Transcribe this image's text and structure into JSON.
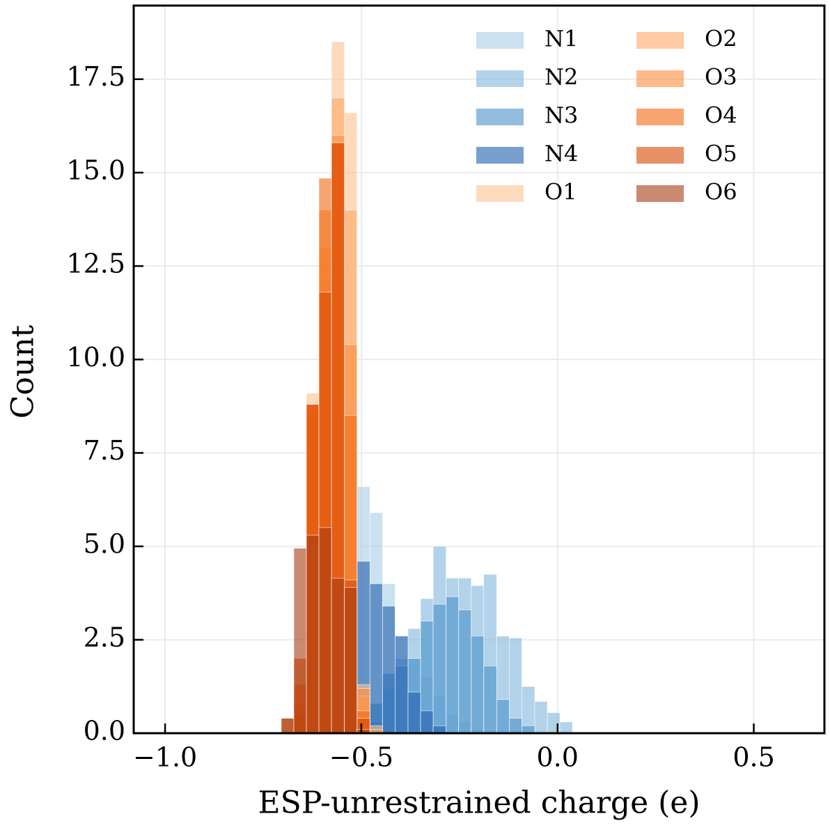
{
  "chart_data": {
    "type": "histogram",
    "xlabel": "ESP-unrestrained charge (e)",
    "ylabel": "Count",
    "xlim": [
      -1.08,
      0.68
    ],
    "ylim": [
      0,
      19.47
    ],
    "xticks": [
      {
        "value": -1.0,
        "label": "−1.0"
      },
      {
        "value": -0.5,
        "label": "−0.5"
      },
      {
        "value": 0.0,
        "label": "0.0"
      },
      {
        "value": 0.5,
        "label": "0.5"
      }
    ],
    "yticks": [
      {
        "value": 0,
        "label": "0.0"
      },
      2.5,
      {
        "value": 5,
        "label": "5.0"
      },
      7.5,
      {
        "value": 10,
        "label": "10.0"
      },
      12.5,
      {
        "value": 15,
        "label": "15.0"
      },
      17.5
    ],
    "grid": true,
    "legend": "upper right",
    "legend_columns": 2,
    "opacity": 0.6,
    "bins": [
      -0.704,
      -0.672,
      -0.64,
      -0.608,
      -0.576,
      -0.543,
      -0.511,
      -0.478,
      -0.446,
      -0.414,
      -0.381,
      -0.349,
      -0.317,
      -0.284,
      -0.252,
      -0.22,
      -0.188,
      -0.155,
      -0.123,
      -0.091,
      -0.058,
      -0.026,
      0.006,
      0.038,
      0.071
    ],
    "series": [
      {
        "name": "N1",
        "color": "#a6cde6",
        "values": [
          0,
          0,
          0,
          0,
          0,
          0.1,
          6.6,
          5.9,
          4.0,
          2.6,
          2.0,
          1.5,
          1.0,
          0.5,
          0.3,
          0.1,
          0,
          0,
          0,
          0,
          0,
          0,
          0,
          0
        ]
      },
      {
        "name": "N2",
        "color": "#7fb6dc",
        "values": [
          0,
          0,
          0,
          0,
          0,
          0,
          0,
          0.3,
          1.2,
          2.0,
          2.8,
          3.6,
          5.0,
          4.15,
          4.15,
          3.95,
          4.25,
          2.6,
          2.55,
          1.25,
          0.85,
          0.55,
          0.3,
          0
        ]
      },
      {
        "name": "N3",
        "color": "#4a91c9",
        "values": [
          0,
          0,
          0,
          0,
          0,
          0,
          0.2,
          0.8,
          1.6,
          1.8,
          2.0,
          3.0,
          3.45,
          3.65,
          3.3,
          2.6,
          1.8,
          0.9,
          0.4,
          0.2,
          0,
          0,
          0,
          0
        ]
      },
      {
        "name": "N4",
        "color": "#1f5fae",
        "values": [
          0,
          0,
          0,
          0,
          0,
          0,
          4.6,
          4.0,
          3.4,
          2.6,
          1.1,
          0.6,
          0.2,
          0,
          0,
          0,
          0,
          0,
          0,
          0,
          0,
          0,
          0,
          0
        ]
      },
      {
        "name": "O1",
        "color": "#fdc190",
        "values": [
          0,
          0.3,
          9.1,
          12.0,
          18.5,
          16.6,
          1.3,
          0.2,
          0,
          0,
          0,
          0,
          0,
          0,
          0,
          0,
          0,
          0,
          0,
          0,
          0,
          0,
          0,
          0
        ]
      },
      {
        "name": "O2",
        "color": "#fda868",
        "values": [
          0,
          0.5,
          8.5,
          13.0,
          17.0,
          14.0,
          1.0,
          0,
          0,
          0,
          0,
          0,
          0,
          0,
          0,
          0,
          0,
          0,
          0,
          0,
          0,
          0,
          0,
          0
        ]
      },
      {
        "name": "O3",
        "color": "#fd8d3c",
        "values": [
          0,
          0.8,
          8.8,
          14.0,
          16.0,
          10.4,
          1.2,
          0.1,
          0,
          0,
          0,
          0,
          0,
          0,
          0,
          0,
          0,
          0,
          0,
          0,
          0,
          0,
          0,
          0
        ]
      },
      {
        "name": "O4",
        "color": "#f16913",
        "values": [
          0,
          1.3,
          8.8,
          14.85,
          15.8,
          8.5,
          0.6,
          0,
          0,
          0,
          0,
          0,
          0,
          0,
          0,
          0,
          0,
          0,
          0,
          0,
          0,
          0,
          0,
          0
        ]
      },
      {
        "name": "O5",
        "color": "#d94801",
        "values": [
          0.4,
          2.0,
          8.8,
          11.8,
          15.8,
          4.1,
          0.4,
          0,
          0,
          0,
          0,
          0,
          0,
          0,
          0,
          0,
          0,
          0,
          0,
          0,
          0,
          0,
          0,
          0
        ]
      },
      {
        "name": "O6",
        "color": "#a63c12",
        "values": [
          0.4,
          4.95,
          5.3,
          5.5,
          4.15,
          3.9,
          0.1,
          0,
          0,
          0,
          0,
          0,
          0,
          0,
          0,
          0,
          0,
          0,
          0,
          0,
          0,
          0,
          0,
          0
        ]
      }
    ]
  }
}
